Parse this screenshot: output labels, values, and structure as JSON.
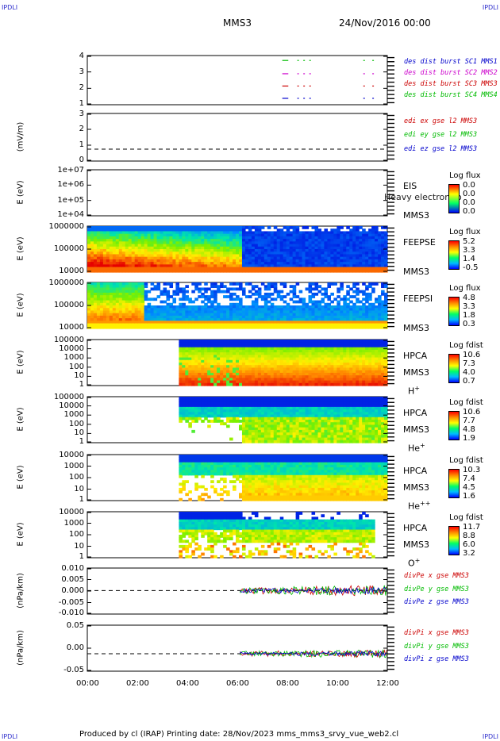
{
  "header": {
    "spacecraft": "MMS3",
    "date": "24/Nov/2016 00:00",
    "corner_left": "IPDLI",
    "corner_right": "IPDLI"
  },
  "footer": {
    "text": "Produced by cl (IRAP)   Printing date: 28/Nov/2023   mms_mms3_srvy_vue_web2.cl"
  },
  "chart_data": {
    "type": "stacked-panels",
    "x_ticks": [
      "00:00",
      "02:00",
      "04:00",
      "06:00",
      "08:00",
      "10:00",
      "12:00"
    ],
    "panels": [
      {
        "id": "burst",
        "ylabel": "",
        "ticks": [
          "4",
          "3",
          "2",
          "1"
        ],
        "legend": [
          {
            "text": "des dist burst SC1 MMS1",
            "color": "#0000cc"
          },
          {
            "text": "des dist burst SC2 MMS2",
            "color": "#cc00cc"
          },
          {
            "text": "des dist burst SC3 MMS3",
            "color": "#cc0000"
          },
          {
            "text": "des dist burst SC4 MMS4",
            "color": "#00bb00"
          }
        ]
      },
      {
        "id": "edi",
        "ylabel": "(mV/m)",
        "ticks": [
          "3",
          "2",
          "1",
          "0"
        ],
        "legend": [
          {
            "text": "edi ex gse l2 MMS3",
            "color": "#cc0000"
          },
          {
            "text": "edi ey gse l2 MMS3",
            "color": "#00bb00"
          },
          {
            "text": "edi ez gse l2 MMS3",
            "color": "#0000cc"
          }
        ]
      },
      {
        "id": "eis",
        "ylabel": "E (eV)",
        "ticks": [
          "1e+07",
          "1e+06",
          "1e+05",
          "1e+04"
        ],
        "inst": [
          "EIS",
          "MMS3"
        ],
        "overlay": "Heavy electron to",
        "cb_title": "Log flux",
        "cb_vals": [
          "0.0",
          "0.0",
          "0.0",
          "0.0"
        ]
      },
      {
        "id": "feepse",
        "ylabel": "E (eV)",
        "ticks": [
          "1000000",
          "100000",
          "10000"
        ],
        "inst": [
          "FEEPSE",
          "MMS3"
        ],
        "cb_title": "Log flux",
        "cb_vals": [
          "5.2",
          "3.3",
          "1.4",
          "-0.5"
        ]
      },
      {
        "id": "feepsi",
        "ylabel": "E (eV)",
        "ticks": [
          "1000000",
          "100000",
          "10000"
        ],
        "inst": [
          "FEEPSI",
          "MMS3"
        ],
        "cb_title": "Log flux",
        "cb_vals": [
          "4.8",
          "3.3",
          "1.8",
          "0.3"
        ]
      },
      {
        "id": "hpca_h",
        "ylabel": "E (eV)",
        "ticks": [
          "100000",
          "10000",
          "1000",
          "100",
          "10",
          "1"
        ],
        "inst": [
          "HPCA",
          "MMS3"
        ],
        "species": "H",
        "species_sup": "+",
        "cb_title": "Log fdist",
        "cb_vals": [
          "10.6",
          "7.3",
          "4.0",
          "0.7"
        ]
      },
      {
        "id": "hpca_he",
        "ylabel": "E (eV)",
        "ticks": [
          "100000",
          "10000",
          "1000",
          "100",
          "10",
          "1"
        ],
        "inst": [
          "HPCA",
          "MMS3"
        ],
        "species": "He",
        "species_sup": "+",
        "cb_title": "Log fdist",
        "cb_vals": [
          "10.6",
          "7.7",
          "4.8",
          "1.9"
        ]
      },
      {
        "id": "hpca_hepp",
        "ylabel": "E (eV)",
        "ticks": [
          "10000",
          "1000",
          "100",
          "10",
          "1"
        ],
        "inst": [
          "HPCA",
          "MMS3"
        ],
        "species": "He",
        "species_sup": "++",
        "cb_title": "Log fdist",
        "cb_vals": [
          "10.3",
          "7.4",
          "4.5",
          "1.6"
        ]
      },
      {
        "id": "hpca_o",
        "ylabel": "E (eV)",
        "ticks": [
          "10000",
          "1000",
          "100",
          "10",
          "1"
        ],
        "inst": [
          "HPCA",
          "MMS3"
        ],
        "species": "O",
        "species_sup": "+",
        "cb_title": "Log fdist",
        "cb_vals": [
          "11.7",
          "8.8",
          "6.0",
          "3.2"
        ]
      },
      {
        "id": "divpe",
        "ylabel": "(nPa/km)",
        "ticks": [
          "0.010",
          "0.005",
          "0.000",
          "-0.005",
          "-0.010"
        ],
        "legend": [
          {
            "text": "divPe x gse MMS3",
            "color": "#cc0000"
          },
          {
            "text": "divPe y gse MMS3",
            "color": "#00bb00"
          },
          {
            "text": "divPe z gse MMS3",
            "color": "#0000cc"
          }
        ]
      },
      {
        "id": "divpi",
        "ylabel": "(nPa/km)",
        "ticks": [
          "0.05",
          "0.00",
          "-0.05"
        ],
        "legend": [
          {
            "text": "divPi x gse MMS3",
            "color": "#cc0000"
          },
          {
            "text": "divPi y gse MMS3",
            "color": "#00bb00"
          },
          {
            "text": "divPi z gse MMS3",
            "color": "#0000cc"
          }
        ]
      }
    ]
  }
}
